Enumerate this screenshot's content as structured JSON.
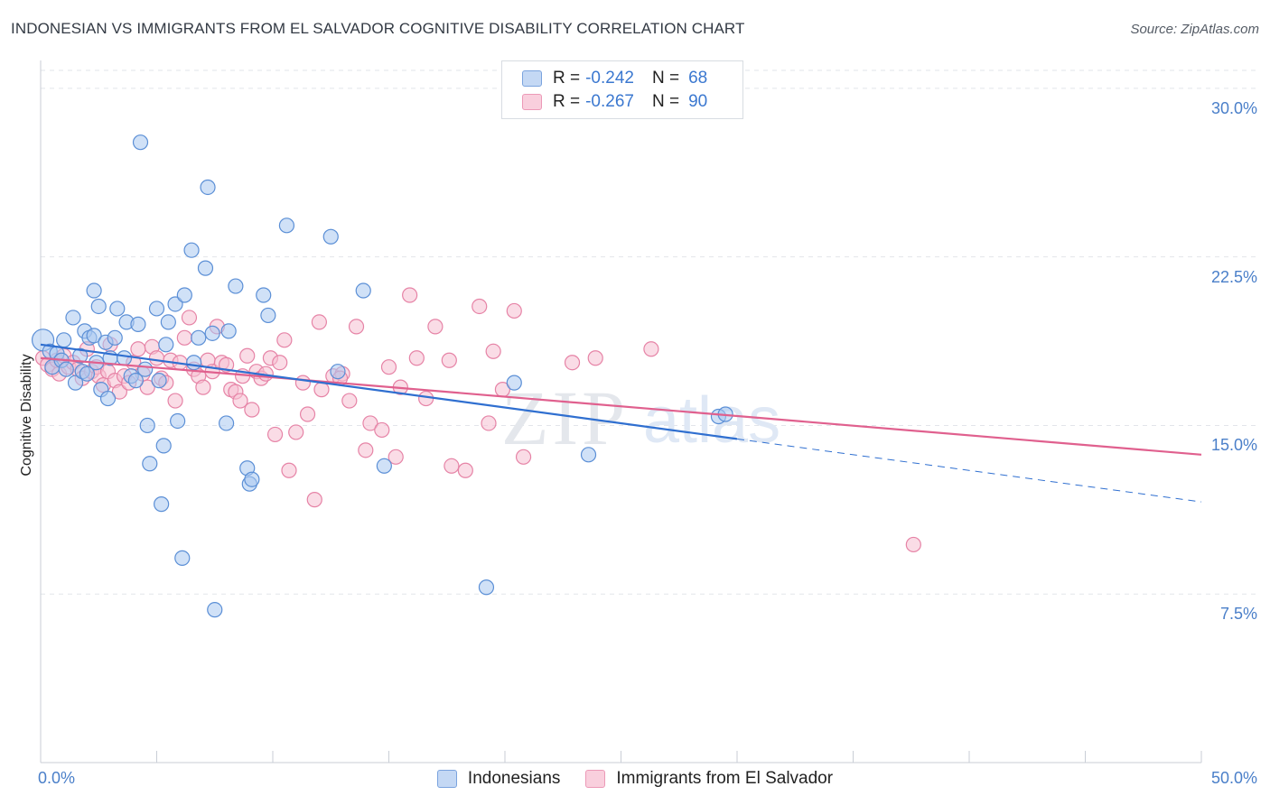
{
  "header": {
    "title": "INDONESIAN VS IMMIGRANTS FROM EL SALVADOR COGNITIVE DISABILITY CORRELATION CHART",
    "source": "Source: ZipAtlas.com"
  },
  "watermark": {
    "zip": "ZIP",
    "atlas": "atlas"
  },
  "legend_top": {
    "rows": [
      {
        "r_label": "R =",
        "r_value": "-0.242",
        "n_label": "N =",
        "n_value": "68"
      },
      {
        "r_label": "R =",
        "r_value": "-0.267",
        "n_label": "N =",
        "n_value": "90"
      }
    ]
  },
  "colors": {
    "indonesians_fill": "#aac8f0",
    "indonesians_stroke": "#5b8fd6",
    "indonesians_line": "#2f6fd0",
    "salvador_fill": "#f6bfd2",
    "salvador_stroke": "#e683a6",
    "salvador_line": "#e0608e",
    "tick_label": "#4a7fc9",
    "grid": "#e2e5ea"
  },
  "chart_data": {
    "type": "scatter",
    "title": "INDONESIAN VS IMMIGRANTS FROM EL SALVADOR COGNITIVE DISABILITY CORRELATION CHART",
    "xlabel": "",
    "ylabel": "Cognitive Disability",
    "xlim": [
      0,
      50
    ],
    "ylim": [
      0,
      31
    ],
    "x_tick_labels": [
      "0.0%",
      "50.0%"
    ],
    "y_ticks": [
      7.5,
      15.0,
      22.5,
      30.0
    ],
    "y_tick_labels": [
      "7.5%",
      "15.0%",
      "22.5%",
      "30.0%"
    ],
    "grid": true,
    "legend_position": "bottom",
    "series": [
      {
        "name": "Indonesians",
        "r": -0.242,
        "n": 68,
        "trend": {
          "x_start": 0,
          "y_start": 18.6,
          "x_end": 30,
          "y_end": 14.4,
          "dashed_x_end": 50,
          "dashed_y_end": 11.6
        },
        "points": [
          [
            0.1,
            18.8
          ],
          [
            0.4,
            18.3
          ],
          [
            0.5,
            17.6
          ],
          [
            0.7,
            18.2
          ],
          [
            0.9,
            17.9
          ],
          [
            1.0,
            18.8
          ],
          [
            1.1,
            17.5
          ],
          [
            1.4,
            19.8
          ],
          [
            1.5,
            16.9
          ],
          [
            1.7,
            18.1
          ],
          [
            1.8,
            17.4
          ],
          [
            1.9,
            19.2
          ],
          [
            2.0,
            17.3
          ],
          [
            2.1,
            18.9
          ],
          [
            2.3,
            19.0
          ],
          [
            2.3,
            21.0
          ],
          [
            2.4,
            17.8
          ],
          [
            2.5,
            20.3
          ],
          [
            2.6,
            16.6
          ],
          [
            2.8,
            18.7
          ],
          [
            2.9,
            16.2
          ],
          [
            3.0,
            18.0
          ],
          [
            3.2,
            18.9
          ],
          [
            3.3,
            20.2
          ],
          [
            3.6,
            18.0
          ],
          [
            3.7,
            19.6
          ],
          [
            3.9,
            17.2
          ],
          [
            4.1,
            17.0
          ],
          [
            4.2,
            19.5
          ],
          [
            4.3,
            27.6
          ],
          [
            4.5,
            17.5
          ],
          [
            4.6,
            15.0
          ],
          [
            4.7,
            13.3
          ],
          [
            5.0,
            20.2
          ],
          [
            5.1,
            17.0
          ],
          [
            5.2,
            11.5
          ],
          [
            5.3,
            14.1
          ],
          [
            5.4,
            18.6
          ],
          [
            5.5,
            19.6
          ],
          [
            5.8,
            20.4
          ],
          [
            5.9,
            15.2
          ],
          [
            6.1,
            9.1
          ],
          [
            6.2,
            20.8
          ],
          [
            6.5,
            22.8
          ],
          [
            6.6,
            17.8
          ],
          [
            6.8,
            18.9
          ],
          [
            7.1,
            22.0
          ],
          [
            7.2,
            25.6
          ],
          [
            7.4,
            19.1
          ],
          [
            7.5,
            6.8
          ],
          [
            8.0,
            15.1
          ],
          [
            8.1,
            19.2
          ],
          [
            8.4,
            21.2
          ],
          [
            8.9,
            13.1
          ],
          [
            9.0,
            12.4
          ],
          [
            9.1,
            12.6
          ],
          [
            9.6,
            20.8
          ],
          [
            9.8,
            19.9
          ],
          [
            10.6,
            23.9
          ],
          [
            12.5,
            23.4
          ],
          [
            12.8,
            17.4
          ],
          [
            13.9,
            21.0
          ],
          [
            14.8,
            13.2
          ],
          [
            19.2,
            7.8
          ],
          [
            20.4,
            16.9
          ],
          [
            23.6,
            13.7
          ],
          [
            29.2,
            15.4
          ],
          [
            29.5,
            15.5
          ]
        ]
      },
      {
        "name": "Immigrants from El Salvador",
        "r": -0.267,
        "n": 90,
        "trend": {
          "x_start": 0,
          "y_start": 18.0,
          "x_end": 50,
          "y_end": 13.7
        },
        "points": [
          [
            0.1,
            18.0
          ],
          [
            0.3,
            17.7
          ],
          [
            0.5,
            17.5
          ],
          [
            0.7,
            17.9
          ],
          [
            0.8,
            17.3
          ],
          [
            1.0,
            18.1
          ],
          [
            1.2,
            17.6
          ],
          [
            1.4,
            17.8
          ],
          [
            1.6,
            17.5
          ],
          [
            1.8,
            17.1
          ],
          [
            2.0,
            18.4
          ],
          [
            2.2,
            17.4
          ],
          [
            2.4,
            17.6
          ],
          [
            2.5,
            17.2
          ],
          [
            2.7,
            16.8
          ],
          [
            2.9,
            17.4
          ],
          [
            3.0,
            18.6
          ],
          [
            3.2,
            17.0
          ],
          [
            3.4,
            16.5
          ],
          [
            3.6,
            17.2
          ],
          [
            3.8,
            16.9
          ],
          [
            4.0,
            17.8
          ],
          [
            4.2,
            18.4
          ],
          [
            4.4,
            17.3
          ],
          [
            4.6,
            16.7
          ],
          [
            4.8,
            18.5
          ],
          [
            5.0,
            18.0
          ],
          [
            5.2,
            17.1
          ],
          [
            5.4,
            16.9
          ],
          [
            5.6,
            17.9
          ],
          [
            5.8,
            16.1
          ],
          [
            6.0,
            17.8
          ],
          [
            6.2,
            18.9
          ],
          [
            6.4,
            19.8
          ],
          [
            6.6,
            17.5
          ],
          [
            6.8,
            17.2
          ],
          [
            7.0,
            16.7
          ],
          [
            7.2,
            17.9
          ],
          [
            7.4,
            17.4
          ],
          [
            7.6,
            19.4
          ],
          [
            7.8,
            17.8
          ],
          [
            8.0,
            17.7
          ],
          [
            8.2,
            16.6
          ],
          [
            8.4,
            16.5
          ],
          [
            8.6,
            16.1
          ],
          [
            8.7,
            17.2
          ],
          [
            8.9,
            18.1
          ],
          [
            9.1,
            15.7
          ],
          [
            9.3,
            17.4
          ],
          [
            9.5,
            17.1
          ],
          [
            9.7,
            17.3
          ],
          [
            9.9,
            18.0
          ],
          [
            10.1,
            14.6
          ],
          [
            10.3,
            17.8
          ],
          [
            10.5,
            18.8
          ],
          [
            10.7,
            13.0
          ],
          [
            11.0,
            14.7
          ],
          [
            11.3,
            16.9
          ],
          [
            11.5,
            15.5
          ],
          [
            11.8,
            11.7
          ],
          [
            12.0,
            19.6
          ],
          [
            12.1,
            16.6
          ],
          [
            12.6,
            17.2
          ],
          [
            13.0,
            17.3
          ],
          [
            13.3,
            16.1
          ],
          [
            13.6,
            19.4
          ],
          [
            14.0,
            13.9
          ],
          [
            14.2,
            15.1
          ],
          [
            14.7,
            14.8
          ],
          [
            15.0,
            17.6
          ],
          [
            15.3,
            13.6
          ],
          [
            15.5,
            16.7
          ],
          [
            15.9,
            20.8
          ],
          [
            16.2,
            18.0
          ],
          [
            16.6,
            16.2
          ],
          [
            17.0,
            19.4
          ],
          [
            17.6,
            17.9
          ],
          [
            17.7,
            13.2
          ],
          [
            18.3,
            13.0
          ],
          [
            18.9,
            20.3
          ],
          [
            19.3,
            15.1
          ],
          [
            19.5,
            18.3
          ],
          [
            19.9,
            16.6
          ],
          [
            20.4,
            20.1
          ],
          [
            20.8,
            13.6
          ],
          [
            22.9,
            17.8
          ],
          [
            23.9,
            18.0
          ],
          [
            26.3,
            18.4
          ],
          [
            37.6,
            9.7
          ],
          [
            12.9,
            17.1
          ]
        ]
      }
    ]
  }
}
